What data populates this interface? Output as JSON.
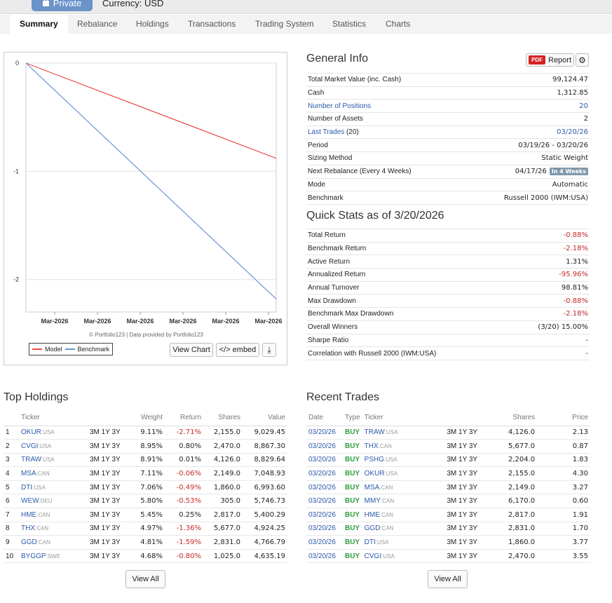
{
  "header": {
    "private_label": "Private",
    "currency": "Currency: USD"
  },
  "tabs": [
    {
      "label": "Summary"
    },
    {
      "label": "Rebalance"
    },
    {
      "label": "Holdings"
    },
    {
      "label": "Transactions"
    },
    {
      "label": "Trading System"
    },
    {
      "label": "Statistics"
    },
    {
      "label": "Charts"
    }
  ],
  "chart": {
    "credits": "© Portfolio123 | Data provided by Portfolio123",
    "legend": {
      "model": "Model",
      "benchmark": "Benchmark"
    },
    "buttons": {
      "view_chart": "View Chart",
      "embed": "</> embed"
    },
    "colors": {
      "model": "#e84a4a",
      "benchmark": "#6a93d4"
    }
  },
  "chart_data": {
    "type": "line",
    "x_ticks": [
      "Mar-2026",
      "Mar-2026",
      "Mar-2026",
      "Mar-2026",
      "Mar-2026",
      "Mar-2026"
    ],
    "y_ticks": [
      "0",
      "-1",
      "-2"
    ],
    "ylim": [
      -2.3,
      0
    ],
    "series": [
      {
        "name": "Model",
        "values": [
          0,
          -0.88
        ]
      },
      {
        "name": "Benchmark",
        "values": [
          0,
          -2.18
        ]
      }
    ]
  },
  "general_info": {
    "title": "General Info",
    "report_label": "Report",
    "pdf_label": "PDF",
    "rows": [
      {
        "label": "Total Market Value (inc. Cash)",
        "value": "99,124.47"
      },
      {
        "label": "Cash",
        "value": "1,312.85"
      },
      {
        "label": "Number of Positions",
        "value": "20"
      },
      {
        "label": "Number of Assets",
        "value": "2"
      },
      {
        "label": "Last Trades",
        "suffix": "(20)",
        "value": "03/20/26"
      },
      {
        "label": "Period",
        "value": "03/19/26 - 03/20/26"
      },
      {
        "label": "Sizing Method",
        "value": "Static Weight"
      },
      {
        "label": "Next Rebalance (Every 4 Weeks)",
        "value": "04/17/26",
        "badge": "In 4 Weeks"
      },
      {
        "label": "Mode",
        "value": "Automatic"
      },
      {
        "label": "Benchmark",
        "value": "Russell 2000 (IWM:USA)"
      }
    ]
  },
  "quick_stats": {
    "title": "Quick Stats as of 3/20/2026",
    "rows": [
      {
        "label": "Total Return",
        "value": "-0.88%"
      },
      {
        "label": "Benchmark Return",
        "value": "-2.18%"
      },
      {
        "label": "Active Return",
        "value": "1.31%"
      },
      {
        "label": "Annualized Return",
        "value": "-95.96%"
      },
      {
        "label": "Annual Turnover",
        "value": "98.81%"
      },
      {
        "label": "Max Drawdown",
        "value": "-0.88%"
      },
      {
        "label": "Benchmark Max Drawdown",
        "value": "-2.18%"
      },
      {
        "label": "Overall Winners",
        "value": "(3/20) 15.00%"
      },
      {
        "label": "Sharpe Ratio",
        "value": "-"
      },
      {
        "label": "Correlation with Russell 2000 (IWM:USA)",
        "value": "-"
      }
    ]
  },
  "top_holdings": {
    "title": "Top Holdings",
    "columns": [
      "Ticker",
      "Weight",
      "Return",
      "Shares",
      "Value"
    ],
    "periods": "3M 1Y 3Y",
    "view_all": "View All",
    "rows": [
      {
        "n": "1",
        "ticker": "OKUR",
        "exch": ":USA",
        "weight": "9.11%",
        "ret": "-2.71%",
        "shares": "2,155.0",
        "value": "9,029.45"
      },
      {
        "n": "2",
        "ticker": "CVGI",
        "exch": ":USA",
        "weight": "8.95%",
        "ret": "0.80%",
        "shares": "2,470.0",
        "value": "8,867.30"
      },
      {
        "n": "3",
        "ticker": "TRAW",
        "exch": ":USA",
        "weight": "8.91%",
        "ret": "0.01%",
        "shares": "4,126.0",
        "value": "8,829.64"
      },
      {
        "n": "4",
        "ticker": "MSA",
        "exch": ":CAN",
        "weight": "7.11%",
        "ret": "-0.06%",
        "shares": "2,149.0",
        "value": "7,048.93"
      },
      {
        "n": "5",
        "ticker": "DTI",
        "exch": ":USA",
        "weight": "7.06%",
        "ret": "-0.49%",
        "shares": "1,860.0",
        "value": "6,993.60"
      },
      {
        "n": "6",
        "ticker": "WEW",
        "exch": ":DEU",
        "weight": "5.80%",
        "ret": "-0.53%",
        "shares": "305.0",
        "value": "5,746.73"
      },
      {
        "n": "7",
        "ticker": "HME",
        "exch": ":CAN",
        "weight": "5.45%",
        "ret": "0.25%",
        "shares": "2,817.0",
        "value": "5,400.29"
      },
      {
        "n": "8",
        "ticker": "THX",
        "exch": ":CAN",
        "weight": "4.97%",
        "ret": "-1.36%",
        "shares": "5,677.0",
        "value": "4,924.25"
      },
      {
        "n": "9",
        "ticker": "GGD",
        "exch": ":CAN",
        "weight": "4.81%",
        "ret": "-1.59%",
        "shares": "2,831.0",
        "value": "4,766.79"
      },
      {
        "n": "10",
        "ticker": "BYGGP",
        "exch": ":SWE",
        "weight": "4.68%",
        "ret": "-0.80%",
        "shares": "1,025.0",
        "value": "4,635.19"
      }
    ]
  },
  "recent_trades": {
    "title": "Recent Trades",
    "columns": [
      "Date",
      "Type",
      "Ticker",
      "Shares",
      "Price"
    ],
    "periods": "3M 1Y 3Y",
    "view_all": "View All",
    "rows": [
      {
        "date": "03/20/26",
        "type": "BUY",
        "ticker": "TRAW",
        "exch": ":USA",
        "shares": "4,126.0",
        "price": "2.13"
      },
      {
        "date": "03/20/26",
        "type": "BUY",
        "ticker": "THX",
        "exch": ":CAN",
        "shares": "5,677.0",
        "price": "0.87"
      },
      {
        "date": "03/20/26",
        "type": "BUY",
        "ticker": "PSHG",
        "exch": ":USA",
        "shares": "2,204.0",
        "price": "1.83"
      },
      {
        "date": "03/20/26",
        "type": "BUY",
        "ticker": "OKUR",
        "exch": ":USA",
        "shares": "2,155.0",
        "price": "4.30"
      },
      {
        "date": "03/20/26",
        "type": "BUY",
        "ticker": "MSA",
        "exch": ":CAN",
        "shares": "2,149.0",
        "price": "3.27"
      },
      {
        "date": "03/20/26",
        "type": "BUY",
        "ticker": "MMY",
        "exch": ":CAN",
        "shares": "6,170.0",
        "price": "0.60"
      },
      {
        "date": "03/20/26",
        "type": "BUY",
        "ticker": "HME",
        "exch": ":CAN",
        "shares": "2,817.0",
        "price": "1.91"
      },
      {
        "date": "03/20/26",
        "type": "BUY",
        "ticker": "GGD",
        "exch": ":CAN",
        "shares": "2,831.0",
        "price": "1.70"
      },
      {
        "date": "03/20/26",
        "type": "BUY",
        "ticker": "DTI",
        "exch": ":USA",
        "shares": "1,860.0",
        "price": "3.77"
      },
      {
        "date": "03/20/26",
        "type": "BUY",
        "ticker": "CVGI",
        "exch": ":USA",
        "shares": "2,470.0",
        "price": "3.55"
      }
    ]
  }
}
